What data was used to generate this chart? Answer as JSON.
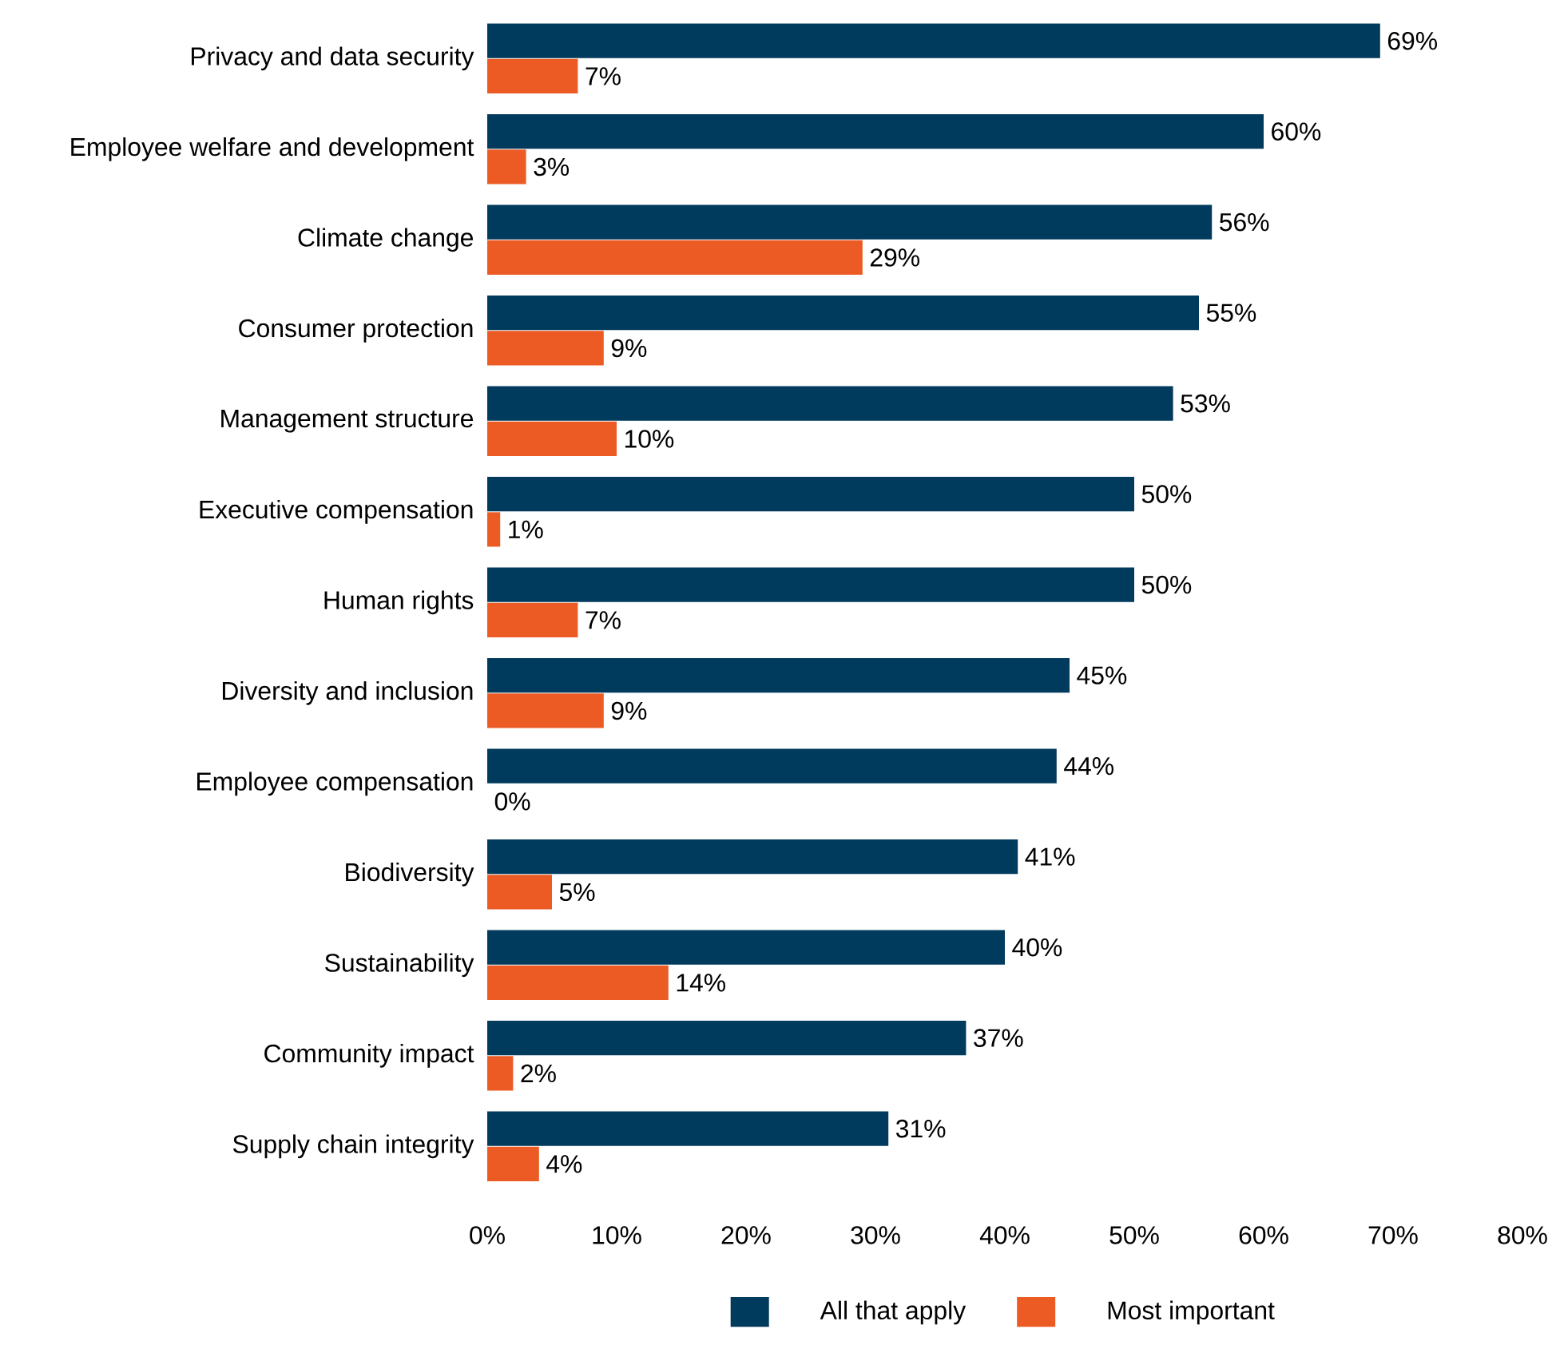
{
  "chart_data": {
    "type": "bar",
    "orientation": "horizontal",
    "categories": [
      "Privacy and data security",
      "Employee welfare and development",
      "Climate change",
      "Consumer protection",
      "Management structure",
      "Executive compensation",
      "Human rights",
      "Diversity and inclusion",
      "Employee compensation",
      "Biodiversity",
      "Sustainability",
      "Community impact",
      "Supply chain integrity"
    ],
    "series": [
      {
        "name": "All that apply",
        "color": "#003a5d",
        "values": [
          69,
          60,
          56,
          55,
          53,
          50,
          50,
          45,
          44,
          41,
          40,
          37,
          31
        ],
        "value_labels": [
          "69%",
          "60%",
          "56%",
          "55%",
          "53%",
          "50%",
          "50%",
          "45%",
          "44%",
          "41%",
          "40%",
          "37%",
          "31%"
        ]
      },
      {
        "name": "Most important",
        "color": "#ec5b24",
        "values": [
          7,
          3,
          29,
          9,
          10,
          1,
          7,
          9,
          0,
          5,
          14,
          2,
          4
        ],
        "value_labels": [
          "7%",
          "3%",
          "29%",
          "9%",
          "10%",
          "1%",
          "7%",
          "9%",
          "0%",
          "5%",
          "14%",
          "2%",
          "4%"
        ]
      }
    ],
    "xlim": [
      0,
      80
    ],
    "xticks": [
      {
        "value": 0,
        "label": "0%"
      },
      {
        "value": 10,
        "label": "10%"
      },
      {
        "value": 20,
        "label": "20%"
      },
      {
        "value": 30,
        "label": "30%"
      },
      {
        "value": 40,
        "label": "40%"
      },
      {
        "value": 50,
        "label": "50%"
      },
      {
        "value": 60,
        "label": "60%"
      },
      {
        "value": 70,
        "label": "70%"
      },
      {
        "value": 80,
        "label": "80%"
      }
    ],
    "legend": "bottom",
    "grid": false
  }
}
